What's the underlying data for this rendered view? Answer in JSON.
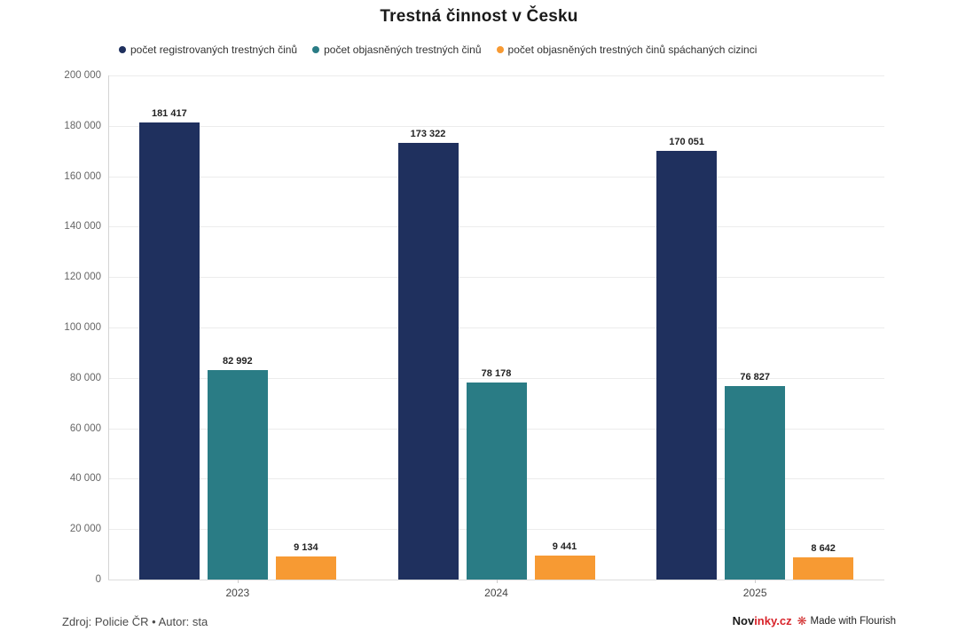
{
  "title": "Trestná činnost v Česku",
  "footer": {
    "source": "Zdroj: Policie ČR • Autor: sta",
    "brand_dark": "Nov",
    "brand_red": "inky.cz",
    "flourish_label": "Made with Flourish",
    "flourish_icon_glyph": "❋"
  },
  "colors": {
    "navy": "#1f305e",
    "teal": "#2a7c85",
    "orange": "#f79a33",
    "grid": "#ececec",
    "axis": "#d4d4d4",
    "brand_red": "#d8232a"
  },
  "chart_data": {
    "type": "bar",
    "title": "Trestná činnost v Česku",
    "categories": [
      "2023",
      "2024",
      "2025"
    ],
    "series": [
      {
        "name": "počet registrovaných trestných činů",
        "color": "#1f305e",
        "values": [
          181417,
          173322,
          170051
        ]
      },
      {
        "name": "počet objasněných trestných činů",
        "color": "#2a7c85",
        "values": [
          82992,
          78178,
          76827
        ]
      },
      {
        "name": "počet objasněných trestných činů spáchaných cizinci",
        "color": "#f79a33",
        "values": [
          9134,
          9441,
          8642
        ]
      }
    ],
    "xlabel": "",
    "ylabel": "",
    "ylim": [
      0,
      200000
    ],
    "ytick_step": 20000,
    "grid": true,
    "legend_position": "top",
    "value_labels": true
  }
}
